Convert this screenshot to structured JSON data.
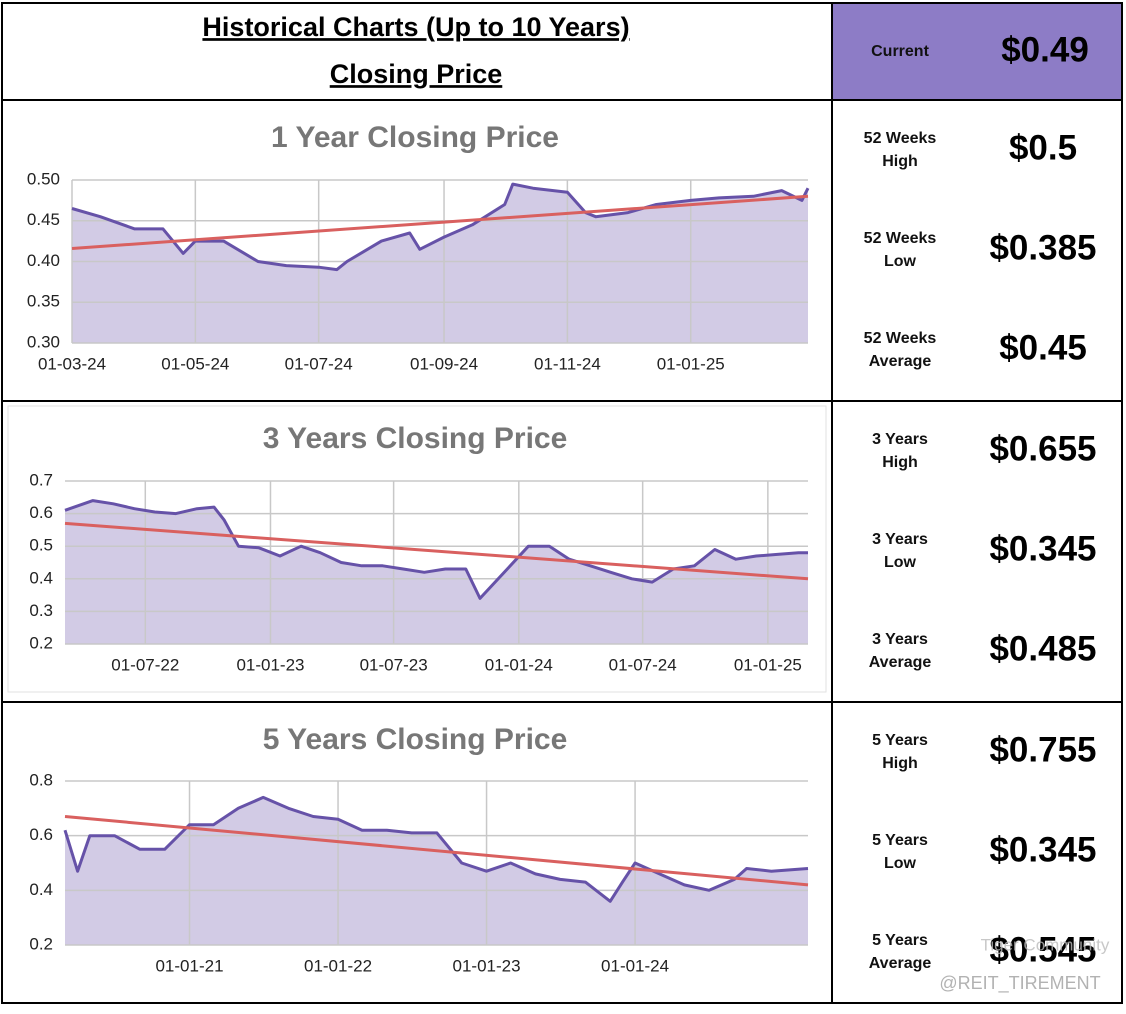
{
  "header": {
    "title": "Historical Charts (Up to 10 Years)",
    "subtitle": "Closing Price"
  },
  "current": {
    "label": "Current",
    "value": "$0.49"
  },
  "stats": [
    {
      "label": [
        "52 Weeks",
        "High"
      ],
      "value": "$0.5"
    },
    {
      "label": [
        "52 Weeks",
        "Low"
      ],
      "value": "$0.385"
    },
    {
      "label": [
        "52 Weeks",
        "Average"
      ],
      "value": "$0.45"
    },
    {
      "label": [
        "3 Years",
        "High"
      ],
      "value": "$0.655"
    },
    {
      "label": [
        "3 Years",
        "Low"
      ],
      "value": "$0.345"
    },
    {
      "label": [
        "3 Years",
        "Average"
      ],
      "value": "$0.485"
    },
    {
      "label": [
        "5 Years",
        "High"
      ],
      "value": "$0.755"
    },
    {
      "label": [
        "5 Years",
        "Low"
      ],
      "value": "$0.345"
    },
    {
      "label": [
        "5 Years",
        "Average"
      ],
      "value": "$0.545"
    }
  ],
  "watermark": [
    "Tiger Community",
    "@REIT_TIREMENT"
  ],
  "chart_data": [
    {
      "type": "area",
      "title": "1 Year Closing Price",
      "color": "#6652a8",
      "fill": "#d2cbe5",
      "grid": true,
      "x": [
        "2024-03-01",
        "2024-03-15",
        "2024-04-01",
        "2024-04-15",
        "2024-04-25",
        "2024-05-01",
        "2024-05-15",
        "2024-06-01",
        "2024-06-15",
        "2024-07-01",
        "2024-07-10",
        "2024-07-15",
        "2024-08-01",
        "2024-08-15",
        "2024-08-20",
        "2024-09-01",
        "2024-09-15",
        "2024-10-01",
        "2024-10-05",
        "2024-10-15",
        "2024-11-01",
        "2024-11-10",
        "2024-11-15",
        "2024-12-01",
        "2024-12-15",
        "2025-01-01",
        "2025-01-15",
        "2025-02-01",
        "2025-02-15",
        "2025-02-25",
        "2025-02-28"
      ],
      "values": [
        0.465,
        0.455,
        0.44,
        0.44,
        0.41,
        0.425,
        0.425,
        0.4,
        0.395,
        0.393,
        0.39,
        0.4,
        0.425,
        0.435,
        0.415,
        0.43,
        0.445,
        0.47,
        0.495,
        0.49,
        0.485,
        0.46,
        0.455,
        0.46,
        0.47,
        0.475,
        0.478,
        0.48,
        0.487,
        0.475,
        0.49
      ],
      "trend": {
        "color": "#d9605f",
        "x": [
          "2024-03-01",
          "2025-02-28"
        ],
        "values": [
          0.416,
          0.48
        ]
      },
      "xlim": [
        "2024-03-01",
        "2025-02-28"
      ],
      "xticks": [
        {
          "value": "2024-03-01",
          "label": "01-03-24"
        },
        {
          "value": "2024-05-01",
          "label": "01-05-24"
        },
        {
          "value": "2024-07-01",
          "label": "01-07-24"
        },
        {
          "value": "2024-09-01",
          "label": "01-09-24"
        },
        {
          "value": "2024-11-01",
          "label": "01-11-24"
        },
        {
          "value": "2025-01-01",
          "label": "01-01-25"
        }
      ],
      "ylim": [
        0.3,
        0.5
      ],
      "yticks": [
        {
          "value": 0.3,
          "label": "0.30"
        },
        0.35,
        {
          "value": 0.4,
          "label": "0.40"
        },
        0.45,
        {
          "value": 0.5,
          "label": "0.50"
        }
      ]
    },
    {
      "type": "area",
      "title": "3 Years Closing Price",
      "color": "#6652a8",
      "fill": "#d2cbe5",
      "grid": true,
      "x": [
        "2022-03-05",
        "2022-04-15",
        "2022-05-15",
        "2022-06-15",
        "2022-07-15",
        "2022-08-15",
        "2022-09-15",
        "2022-10-10",
        "2022-10-25",
        "2022-11-15",
        "2022-12-15",
        "2023-01-15",
        "2023-02-15",
        "2023-03-15",
        "2023-04-15",
        "2023-05-15",
        "2023-06-15",
        "2023-07-15",
        "2023-08-15",
        "2023-09-15",
        "2023-10-15",
        "2023-11-05",
        "2023-12-15",
        "2024-01-15",
        "2024-02-15",
        "2024-03-15",
        "2024-04-15",
        "2024-05-15",
        "2024-06-15",
        "2024-07-15",
        "2024-08-15",
        "2024-09-15",
        "2024-10-15",
        "2024-11-15",
        "2024-12-15",
        "2025-01-15",
        "2025-02-15",
        "2025-03-01"
      ],
      "values": [
        0.61,
        0.64,
        0.63,
        0.615,
        0.605,
        0.6,
        0.615,
        0.62,
        0.58,
        0.5,
        0.495,
        0.47,
        0.5,
        0.48,
        0.45,
        0.44,
        0.44,
        0.43,
        0.42,
        0.43,
        0.43,
        0.34,
        0.43,
        0.5,
        0.5,
        0.46,
        0.44,
        0.42,
        0.4,
        0.39,
        0.43,
        0.44,
        0.49,
        0.46,
        0.47,
        0.475,
        0.48,
        0.48
      ],
      "trend": {
        "color": "#d9605f",
        "x": [
          "2022-03-05",
          "2025-03-01"
        ],
        "values": [
          0.57,
          0.4
        ]
      },
      "xlim": [
        "2022-03-05",
        "2025-03-01"
      ],
      "xticks": [
        {
          "value": "2022-07-01",
          "label": "01-07-22"
        },
        {
          "value": "2023-01-01",
          "label": "01-01-23"
        },
        {
          "value": "2023-07-01",
          "label": "01-07-23"
        },
        {
          "value": "2024-01-01",
          "label": "01-01-24"
        },
        {
          "value": "2024-07-01",
          "label": "01-07-24"
        },
        {
          "value": "2025-01-01",
          "label": "01-01-25"
        }
      ],
      "ylim": [
        0.2,
        0.7
      ],
      "yticks": [
        0.2,
        0.3,
        0.4,
        0.5,
        0.6,
        0.7
      ]
    },
    {
      "type": "area",
      "title": "5 Years Closing Price",
      "color": "#6652a8",
      "fill": "#d2cbe5",
      "grid": true,
      "x": [
        "2020-03-01",
        "2020-04-01",
        "2020-05-01",
        "2020-07-01",
        "2020-09-01",
        "2020-11-01",
        "2021-01-01",
        "2021-03-01",
        "2021-05-01",
        "2021-07-01",
        "2021-09-01",
        "2021-11-01",
        "2022-01-01",
        "2022-03-01",
        "2022-05-01",
        "2022-07-01",
        "2022-09-01",
        "2022-11-01",
        "2023-01-01",
        "2023-03-01",
        "2023-05-01",
        "2023-07-01",
        "2023-09-01",
        "2023-11-01",
        "2023-12-01",
        "2024-01-01",
        "2024-03-01",
        "2024-05-01",
        "2024-07-01",
        "2024-09-01",
        "2024-10-01",
        "2024-12-01",
        "2025-03-01"
      ],
      "values": [
        0.62,
        0.47,
        0.6,
        0.6,
        0.55,
        0.55,
        0.64,
        0.64,
        0.7,
        0.74,
        0.7,
        0.67,
        0.66,
        0.62,
        0.62,
        0.61,
        0.61,
        0.5,
        0.47,
        0.5,
        0.46,
        0.44,
        0.43,
        0.36,
        0.43,
        0.5,
        0.46,
        0.42,
        0.4,
        0.44,
        0.48,
        0.47,
        0.48
      ],
      "trend": {
        "color": "#d9605f",
        "x": [
          "2020-03-01",
          "2025-03-01"
        ],
        "values": [
          0.67,
          0.42
        ]
      },
      "xlim": [
        "2020-03-01",
        "2025-03-01"
      ],
      "xticks": [
        {
          "value": "2021-01-01",
          "label": "01-01-21"
        },
        {
          "value": "2022-01-01",
          "label": "01-01-22"
        },
        {
          "value": "2023-01-01",
          "label": "01-01-23"
        },
        {
          "value": "2024-01-01",
          "label": "01-01-24"
        }
      ],
      "ylim": [
        0.2,
        0.8
      ],
      "yticks": [
        0.2,
        0.4,
        0.6,
        0.8
      ]
    }
  ]
}
